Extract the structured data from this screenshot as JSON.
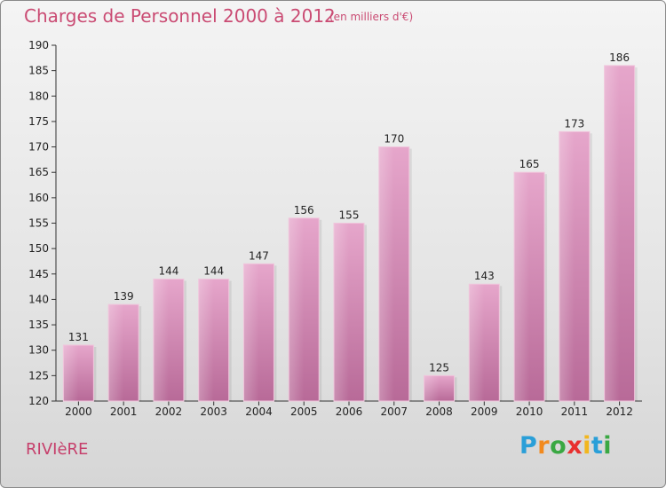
{
  "chart_data": {
    "type": "bar",
    "title": "Charges de Personnel 2000 à 2012",
    "subtitle": "(en milliers d'€)",
    "categories": [
      "2000",
      "2001",
      "2002",
      "2003",
      "2004",
      "2005",
      "2006",
      "2007",
      "2008",
      "2009",
      "2010",
      "2011",
      "2012"
    ],
    "values": [
      131,
      139,
      144,
      144,
      147,
      156,
      155,
      170,
      125,
      143,
      165,
      173,
      186
    ],
    "ylim": [
      120,
      190
    ],
    "yticks": [
      120,
      125,
      130,
      135,
      140,
      145,
      150,
      155,
      160,
      165,
      170,
      175,
      180,
      185,
      190
    ],
    "xlabel": "",
    "ylabel": "",
    "grid": false,
    "bar_color": "#d98cb4"
  },
  "footer": {
    "commune": "RIVIèRE",
    "logo_letters": [
      "P",
      "r",
      "o",
      "x",
      "i",
      "t",
      "i"
    ],
    "logo_colors": [
      "#2a9fd8",
      "#f28a1e",
      "#3aa843",
      "#e8302f",
      "#f2b61e",
      "#2a9fd8",
      "#3aa843"
    ]
  }
}
